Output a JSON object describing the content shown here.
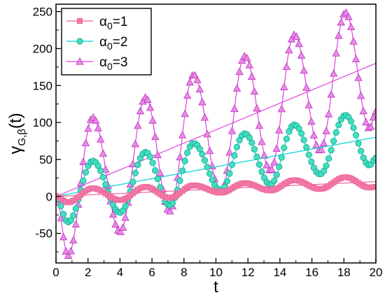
{
  "chart_data": {
    "type": "line",
    "xlabel": "t",
    "ylabel_main": "γ",
    "ylabel_sub": "G,β",
    "ylabel_tail": "(t)",
    "xlim": [
      0,
      20
    ],
    "ylim": [
      -90,
      260
    ],
    "x_ticks": [
      0,
      2,
      4,
      6,
      8,
      10,
      12,
      14,
      16,
      18,
      20
    ],
    "y_ticks": [
      -50,
      0,
      50,
      100,
      150,
      200,
      250
    ],
    "grid": false,
    "legend_position": "top-left",
    "x": [
      0,
      0.75,
      2.3,
      4.0,
      5.6,
      7.1,
      8.6,
      10.3,
      11.8,
      13.4,
      14.9,
      16.5,
      18.1,
      19.6,
      20
    ],
    "series": [
      {
        "name_prefix": "α",
        "name_sub": "0",
        "name_suffix": "=1",
        "color": "#f0649a",
        "marker": "square",
        "values": [
          0,
          -8,
          11,
          -5,
          13,
          -2,
          15,
          5,
          18,
          8,
          22,
          10,
          26,
          12,
          13
        ],
        "trend": [
          0,
          20
        ]
      },
      {
        "name_prefix": "α",
        "name_sub": "0",
        "name_suffix": "=2",
        "color": "#00d4d4",
        "marker": "circle",
        "fill": "#40e0c0",
        "values": [
          0,
          -35,
          48,
          -22,
          60,
          -12,
          72,
          8,
          85,
          16,
          97,
          30,
          110,
          42,
          52
        ],
        "trend": [
          0,
          80
        ]
      },
      {
        "name_prefix": "α",
        "name_sub": "0",
        "name_suffix": "=3",
        "color": "#e040e0",
        "marker": "triangle",
        "values": [
          0,
          -80,
          107,
          -48,
          134,
          -20,
          165,
          5,
          190,
          35,
          219,
          62,
          249,
          92,
          115
        ],
        "trend": [
          0,
          180
        ]
      }
    ]
  }
}
